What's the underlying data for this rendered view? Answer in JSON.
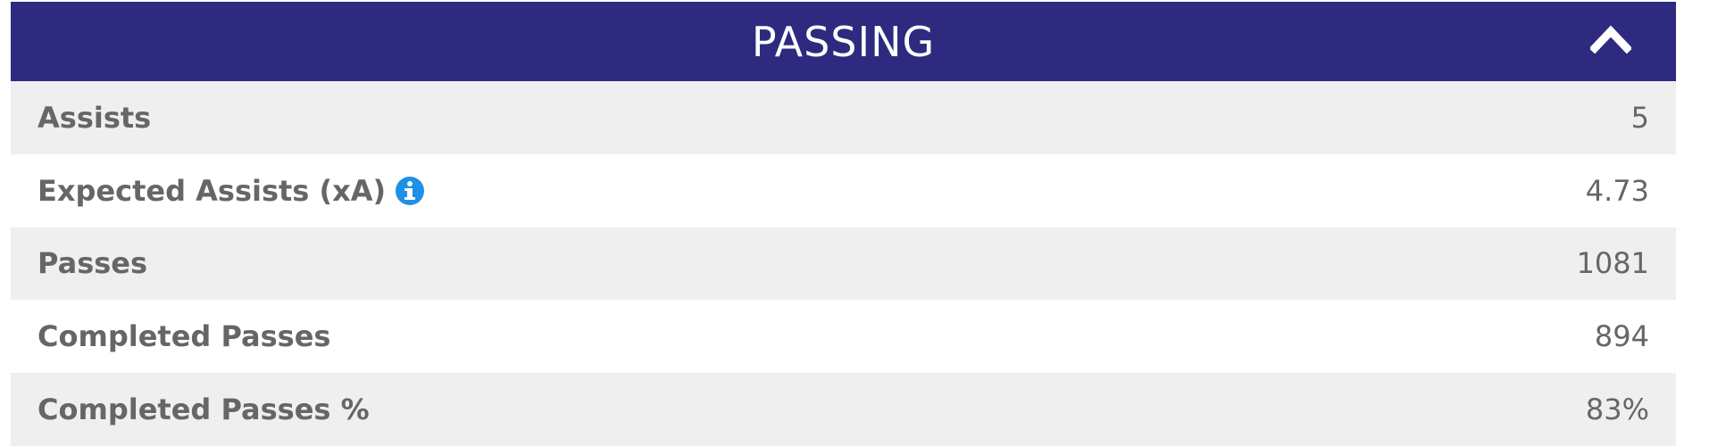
{
  "header": {
    "title": "PASSING"
  },
  "table": {
    "rows": [
      [
        "Assists",
        "5"
      ],
      [
        "Expected Assists (xA)",
        "4.73"
      ],
      [
        "Passes",
        "1081"
      ],
      [
        "Completed Passes",
        "894"
      ],
      [
        "Completed Passes %",
        "83%"
      ]
    ]
  }
}
